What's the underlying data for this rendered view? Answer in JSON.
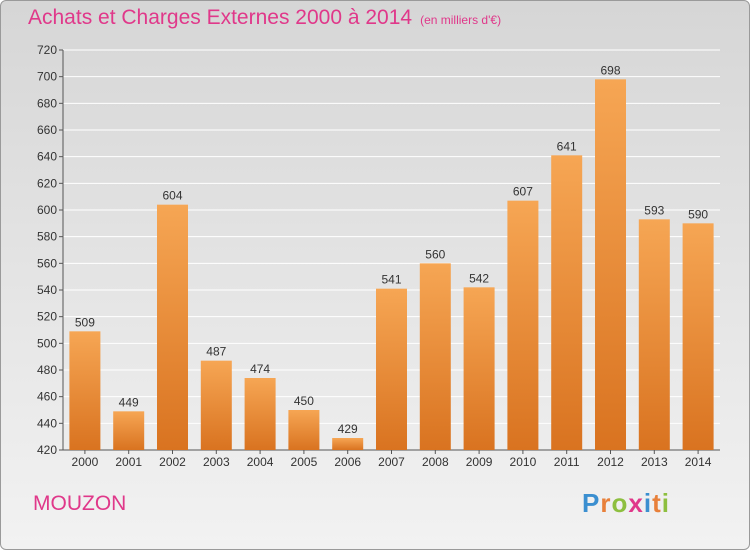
{
  "header": {
    "title": "Achats et Charges Externes 2000 à 2014",
    "unit": "(en milliers d'€)"
  },
  "footer": {
    "location": "MOUZON"
  },
  "brand": {
    "letters": [
      {
        "ch": "P",
        "color": "#3b8fd0"
      },
      {
        "ch": "r",
        "color": "#e8803a"
      },
      {
        "ch": "o",
        "color": "#8dbf3f"
      },
      {
        "ch": "x",
        "color": "#e0388a"
      },
      {
        "ch": "i",
        "color": "#3b8fd0"
      },
      {
        "ch": "t",
        "color": "#e8803a"
      },
      {
        "ch": "i",
        "color": "#8dbf3f"
      }
    ]
  },
  "colors": {
    "bar_top": "#f6a654",
    "bar_bottom": "#d97320",
    "title": "#e0388a",
    "grid": "#ffffff"
  },
  "chart_data": {
    "type": "bar",
    "categories": [
      "2000",
      "2001",
      "2002",
      "2003",
      "2004",
      "2005",
      "2006",
      "2007",
      "2008",
      "2009",
      "2010",
      "2011",
      "2012",
      "2013",
      "2014"
    ],
    "values": [
      509,
      449,
      604,
      487,
      474,
      450,
      429,
      541,
      560,
      542,
      607,
      641,
      698,
      593,
      590
    ],
    "ylim": [
      420,
      720
    ],
    "yticks": [
      420,
      440,
      460,
      480,
      500,
      520,
      540,
      560,
      580,
      600,
      620,
      640,
      660,
      680,
      700,
      720
    ],
    "grid": true
  }
}
